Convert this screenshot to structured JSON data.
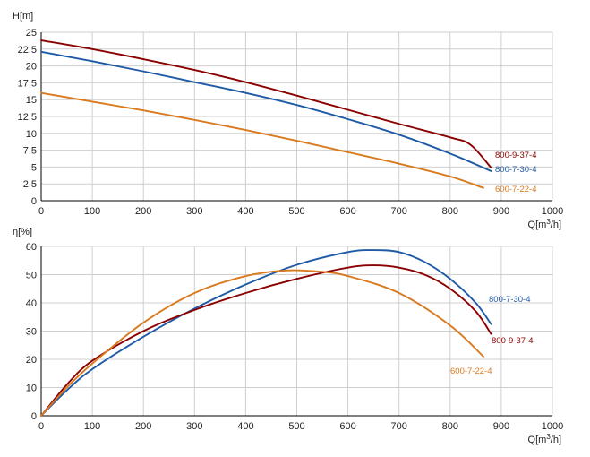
{
  "chart_data": [
    {
      "type": "line",
      "ylabel": "H[m]",
      "xlabel": "Q[m³/h]",
      "xlim": [
        0,
        1000
      ],
      "ylim": [
        0,
        25
      ],
      "x_ticks": [
        0,
        100,
        200,
        300,
        400,
        500,
        600,
        700,
        800,
        900,
        1000
      ],
      "y_ticks": [
        0,
        2.5,
        5,
        7.5,
        10,
        12.5,
        15,
        17.5,
        20,
        22.5,
        25
      ],
      "y_tick_labels": [
        "0",
        "2,5",
        "5",
        "7,5",
        "10",
        "12,5",
        "15",
        "17,5",
        "20",
        "22,5",
        "25"
      ],
      "grid": true,
      "series": [
        {
          "name": "800-9-37-4",
          "color": "#8b0000",
          "points": [
            [
              0,
              23.8
            ],
            [
              100,
              22.5
            ],
            [
              200,
              21.0
            ],
            [
              300,
              19.4
            ],
            [
              400,
              17.6
            ],
            [
              500,
              15.6
            ],
            [
              600,
              13.5
            ],
            [
              700,
              11.4
            ],
            [
              800,
              9.4
            ],
            [
              840,
              8.3
            ],
            [
              880,
              4.9
            ]
          ]
        },
        {
          "name": "800-7-30-4",
          "color": "#1f5aa6",
          "points": [
            [
              0,
              22.1
            ],
            [
              100,
              20.7
            ],
            [
              200,
              19.2
            ],
            [
              300,
              17.6
            ],
            [
              400,
              16.0
            ],
            [
              500,
              14.2
            ],
            [
              600,
              12.1
            ],
            [
              700,
              9.8
            ],
            [
              800,
              7.0
            ],
            [
              880,
              4.4
            ]
          ]
        },
        {
          "name": "600-7-22-4",
          "color": "#d97a1e",
          "points": [
            [
              0,
              16.0
            ],
            [
              100,
              14.7
            ],
            [
              200,
              13.4
            ],
            [
              300,
              12.0
            ],
            [
              400,
              10.5
            ],
            [
              500,
              8.9
            ],
            [
              600,
              7.2
            ],
            [
              700,
              5.5
            ],
            [
              800,
              3.6
            ],
            [
              865,
              1.9
            ]
          ]
        }
      ]
    },
    {
      "type": "line",
      "ylabel": "η[%]",
      "xlabel": "Q[m³/h]",
      "xlim": [
        0,
        1000
      ],
      "ylim": [
        0,
        60
      ],
      "x_ticks": [
        0,
        100,
        200,
        300,
        400,
        500,
        600,
        700,
        800,
        900,
        1000
      ],
      "y_ticks": [
        0,
        10,
        20,
        30,
        40,
        50,
        60
      ],
      "y_tick_labels": [
        "0",
        "10",
        "20",
        "30",
        "40",
        "50",
        "60"
      ],
      "grid": true,
      "series": [
        {
          "name": "800-7-30-4",
          "color": "#1f5aa6",
          "points": [
            [
              0,
              0
            ],
            [
              50,
              9
            ],
            [
              100,
              16.5
            ],
            [
              200,
              28
            ],
            [
              300,
              38
            ],
            [
              400,
              46.5
            ],
            [
              500,
              53.5
            ],
            [
              600,
              58
            ],
            [
              650,
              58.7
            ],
            [
              700,
              58
            ],
            [
              750,
              54.5
            ],
            [
              800,
              48.5
            ],
            [
              850,
              40
            ],
            [
              880,
              32.5
            ]
          ]
        },
        {
          "name": "800-9-37-4",
          "color": "#8b0000",
          "points": [
            [
              0,
              0
            ],
            [
              50,
              11
            ],
            [
              100,
              19.5
            ],
            [
              200,
              30
            ],
            [
              300,
              37.5
            ],
            [
              400,
              43.5
            ],
            [
              500,
              48.5
            ],
            [
              600,
              52.5
            ],
            [
              650,
              53.3
            ],
            [
              700,
              52.5
            ],
            [
              750,
              50
            ],
            [
              800,
              45
            ],
            [
              850,
              37
            ],
            [
              880,
              29
            ]
          ]
        },
        {
          "name": "600-7-22-4",
          "color": "#d97a1e",
          "points": [
            [
              0,
              0
            ],
            [
              50,
              10
            ],
            [
              100,
              18.5
            ],
            [
              200,
              33
            ],
            [
              300,
              43.5
            ],
            [
              400,
              49.5
            ],
            [
              480,
              51.5
            ],
            [
              550,
              51
            ],
            [
              600,
              49.5
            ],
            [
              700,
              43.5
            ],
            [
              800,
              32
            ],
            [
              865,
              21
            ]
          ]
        }
      ]
    }
  ]
}
